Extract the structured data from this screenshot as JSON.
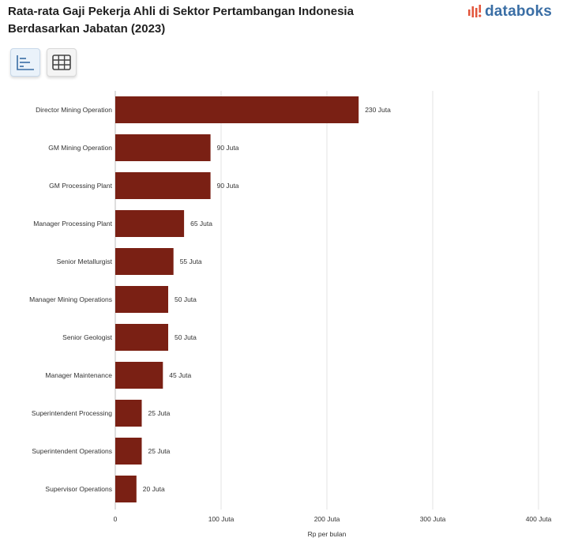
{
  "header": {
    "title": "Rata-rata Gaji Pekerja Ahli di Sektor Pertambangan Indonesia Berdasarkan Jabatan (2023)",
    "logo_text": "databoks"
  },
  "colors": {
    "bar": "#7a2014",
    "logo": "#3a6ea5",
    "logo_accent": "#e2553b",
    "grid": "#e3e3e3"
  },
  "chart_data": {
    "type": "bar",
    "orientation": "horizontal",
    "categories": [
      "Director Mining Operation",
      "GM Mining Operation",
      "GM Processing Plant",
      "Manager Processing Plant",
      "Senior Metallurgist",
      "Manager Mining Operations",
      "Senior Geologist",
      "Manager Maintenance",
      "Superintendent Processing",
      "Superintendent Operations",
      "Supervisor Operations"
    ],
    "values": [
      230,
      90,
      90,
      65,
      55,
      50,
      50,
      45,
      25,
      25,
      20
    ],
    "value_labels": [
      "230 Juta",
      "90 Juta",
      "90 Juta",
      "65 Juta",
      "55 Juta",
      "50 Juta",
      "50 Juta",
      "45 Juta",
      "25 Juta",
      "25 Juta",
      "20 Juta"
    ],
    "xticks": [
      0,
      100,
      200,
      300,
      400
    ],
    "xtick_labels": [
      "0",
      "100 Juta",
      "200 Juta",
      "300 Juta",
      "400 Juta"
    ],
    "xlabel": "Rp per bulan",
    "xlim": [
      0,
      400
    ],
    "grid": true
  }
}
